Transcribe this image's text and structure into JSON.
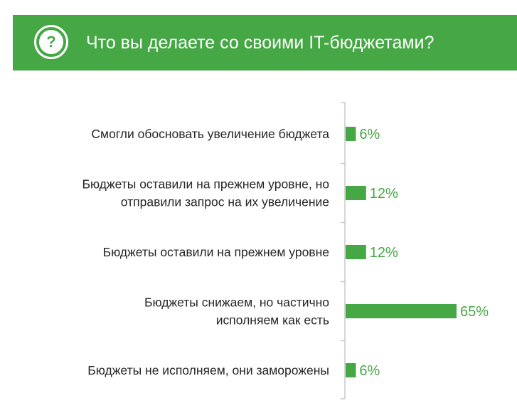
{
  "header": {
    "title": "Что вы делаете со своими IT-бюджетами?",
    "icon": "question-icon",
    "color": "#46a745"
  },
  "chart_data": {
    "type": "bar",
    "orientation": "horizontal",
    "categories": [
      [
        "Смогли обосновать увеличение бюджета"
      ],
      [
        "Бюджеты оставили на прежнем уровне, но",
        "отправили запрос на их увеличение"
      ],
      [
        "Бюджеты оставили на прежнем уровне"
      ],
      [
        "Бюджеты снижаем, но частично",
        "исполняем как есть"
      ],
      [
        "Бюджеты не исполняем, они заморожены"
      ]
    ],
    "values": [
      6,
      12,
      12,
      65,
      6
    ],
    "value_labels": [
      "6%",
      "12%",
      "12%",
      "65%",
      "6%"
    ],
    "unit": "%",
    "xlim": [
      0,
      65
    ],
    "bar_color": "#46a745",
    "label_color": "#46a745",
    "grid": false,
    "legend": "none"
  }
}
